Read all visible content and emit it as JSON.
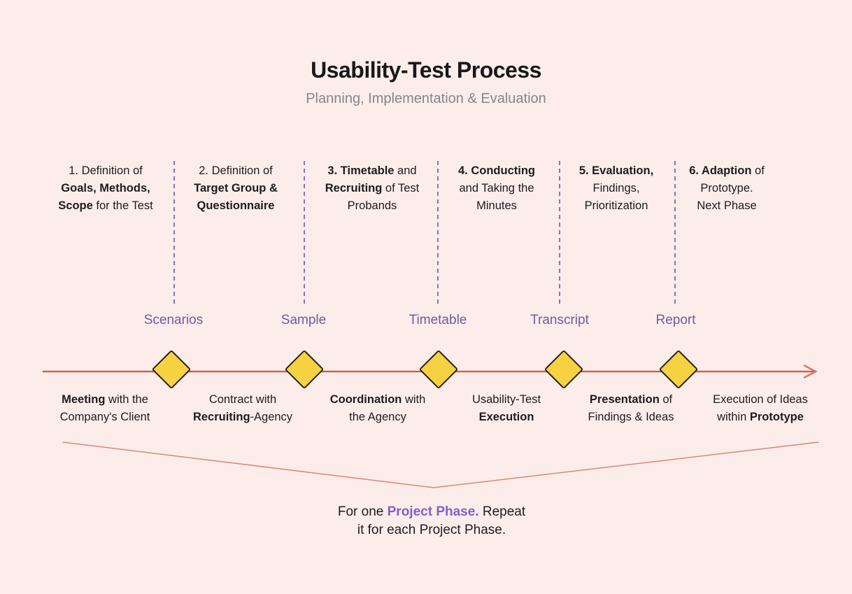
{
  "header": {
    "title": "Usability-Test Process",
    "subtitle": "Planning, Implementation & Evaluation"
  },
  "phases": [
    {
      "lines": [
        [
          {
            "t": "1. Definition of"
          }
        ],
        [
          {
            "t": "Goals, Methods,",
            "bold": true
          }
        ],
        [
          {
            "t": "Scope",
            "bold": true
          },
          {
            "t": " for the Test"
          }
        ]
      ]
    },
    {
      "lines": [
        [
          {
            "t": "2. Definition of"
          }
        ],
        [
          {
            "t": "Target Group &",
            "bold": true
          }
        ],
        [
          {
            "t": "Questionnaire",
            "bold": true
          }
        ]
      ]
    },
    {
      "lines": [
        [
          {
            "t": "3. Timetable",
            "bold": true
          },
          {
            "t": " and"
          }
        ],
        [
          {
            "t": "Recruiting",
            "bold": true
          },
          {
            "t": " of Test"
          }
        ],
        [
          {
            "t": "Probands"
          }
        ]
      ]
    },
    {
      "lines": [
        [
          {
            "t": "4. Conducting",
            "bold": true
          }
        ],
        [
          {
            "t": "and Taking the"
          }
        ],
        [
          {
            "t": "Minutes"
          }
        ]
      ]
    },
    {
      "lines": [
        [
          {
            "t": "5. Evaluation,",
            "bold": true
          }
        ],
        [
          {
            "t": "Findings,"
          }
        ],
        [
          {
            "t": "Prioritization"
          }
        ]
      ]
    },
    {
      "lines": [
        [
          {
            "t": "6. Adaption",
            "bold": true
          },
          {
            "t": " of"
          }
        ],
        [
          {
            "t": "Prototype."
          }
        ],
        [
          {
            "t": "Next Phase"
          }
        ]
      ]
    }
  ],
  "milestones": [
    {
      "label": "Scenarios"
    },
    {
      "label": "Sample"
    },
    {
      "label": "Timetable"
    },
    {
      "label": "Transcript"
    },
    {
      "label": "Report"
    }
  ],
  "activities": [
    {
      "lines": [
        [
          {
            "t": "Meeting",
            "bold": true
          },
          {
            "t": " with the"
          }
        ],
        [
          {
            "t": "Company's Client"
          }
        ]
      ]
    },
    {
      "lines": [
        [
          {
            "t": "Contract with"
          }
        ],
        [
          {
            "t": "Recruiting",
            "bold": true
          },
          {
            "t": "-Agency"
          }
        ]
      ]
    },
    {
      "lines": [
        [
          {
            "t": "Coordination",
            "bold": true
          },
          {
            "t": " with"
          }
        ],
        [
          {
            "t": "the Agency"
          }
        ]
      ]
    },
    {
      "lines": [
        [
          {
            "t": "Usability-Test"
          }
        ],
        [
          {
            "t": "Execution",
            "bold": true
          }
        ]
      ]
    },
    {
      "lines": [
        [
          {
            "t": "Presentation",
            "bold": true
          },
          {
            "t": " of"
          }
        ],
        [
          {
            "t": "Findings & Ideas"
          }
        ]
      ]
    },
    {
      "lines": [
        [
          {
            "t": "Execution of Ideas"
          }
        ],
        [
          {
            "t": "within "
          },
          {
            "t": "Prototype",
            "bold": true
          }
        ]
      ]
    }
  ],
  "footnote": {
    "lines": [
      [
        {
          "t": "For one "
        },
        {
          "t": "Project Phase.",
          "accent": true
        },
        {
          "t": " Repeat"
        }
      ],
      [
        {
          "t": "it for each Project Phase."
        }
      ]
    ]
  },
  "colors": {
    "background": "#FDEDEA",
    "title": "#18181B",
    "subtitle": "#85858B",
    "body_text": "#1C1C1E",
    "milestone_purple": "#6E5BA3",
    "accent_purple": "#7C62C9",
    "dashed_separator": "#8674B8",
    "timeline_red": "#C2685C",
    "bracket_red": "#DB867B",
    "diamond_fill": "#F6D243",
    "diamond_border": "#2B2015"
  }
}
